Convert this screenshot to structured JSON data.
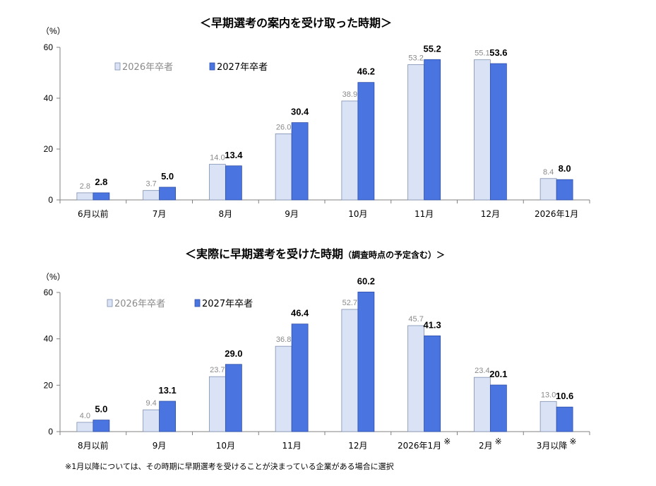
{
  "chart_data": [
    {
      "type": "bar",
      "title": "＜早期選考の案内を受け取った時期＞",
      "subtitle": "",
      "ylabel": "（%）",
      "ylim": [
        0,
        60
      ],
      "yticks": [
        "0",
        "20",
        "40",
        "60"
      ],
      "categories": [
        "6月以前",
        "7月",
        "8月",
        "9月",
        "10月",
        "11月",
        "12月",
        "2026年1月"
      ],
      "category_marks": [
        "",
        "",
        "",
        "",
        "",
        "",
        "",
        ""
      ],
      "series": [
        {
          "name": "2026年卒者",
          "values": [
            2.8,
            3.7,
            14.0,
            26.0,
            38.9,
            53.2,
            55.1,
            8.4
          ],
          "labels": [
            "2.8",
            "3.7",
            "14.0",
            "26.0",
            "38.9",
            "53.2",
            "55.1",
            "8.4"
          ],
          "color": "#dae3f6"
        },
        {
          "name": "2027年卒者",
          "values": [
            2.8,
            5.0,
            13.4,
            30.4,
            46.2,
            55.2,
            53.6,
            8.0
          ],
          "labels": [
            "2.8",
            "5.0",
            "13.4",
            "30.4",
            "46.2",
            "55.2",
            "53.6",
            "8.0"
          ],
          "color": "#4a74e0"
        }
      ],
      "grid": false,
      "legend": "top-left"
    },
    {
      "type": "bar",
      "title": "＜実際に早期選考を受けた時期",
      "subtitle": "（調査時点の予定含む）＞",
      "ylabel": "（%）",
      "ylim": [
        0,
        60
      ],
      "yticks": [
        "0",
        "20",
        "40",
        "60"
      ],
      "categories": [
        "8月以前",
        "9月",
        "10月",
        "11月",
        "12月",
        "2026年1月",
        "2月",
        "3月以降"
      ],
      "category_marks": [
        "",
        "",
        "",
        "",
        "",
        "※",
        "※",
        "※"
      ],
      "series": [
        {
          "name": "2026年卒者",
          "values": [
            4.0,
            9.4,
            23.7,
            36.8,
            52.7,
            45.7,
            23.4,
            13.0
          ],
          "labels": [
            "4.0",
            "9.4",
            "23.7",
            "36.8",
            "52.7",
            "45.7",
            "23.4",
            "13.0"
          ],
          "color": "#dae3f6"
        },
        {
          "name": "2027年卒者",
          "values": [
            5.0,
            13.1,
            29.0,
            46.4,
            60.2,
            41.3,
            20.1,
            10.6
          ],
          "labels": [
            "5.0",
            "13.1",
            "29.0",
            "46.4",
            "60.2",
            "41.3",
            "20.1",
            "10.6"
          ],
          "color": "#4a74e0"
        }
      ],
      "grid": false,
      "legend": "top-left"
    }
  ],
  "footnote": "※1月以降については、その時期に早期選考を受けることが決まっている企業がある場合に選択"
}
